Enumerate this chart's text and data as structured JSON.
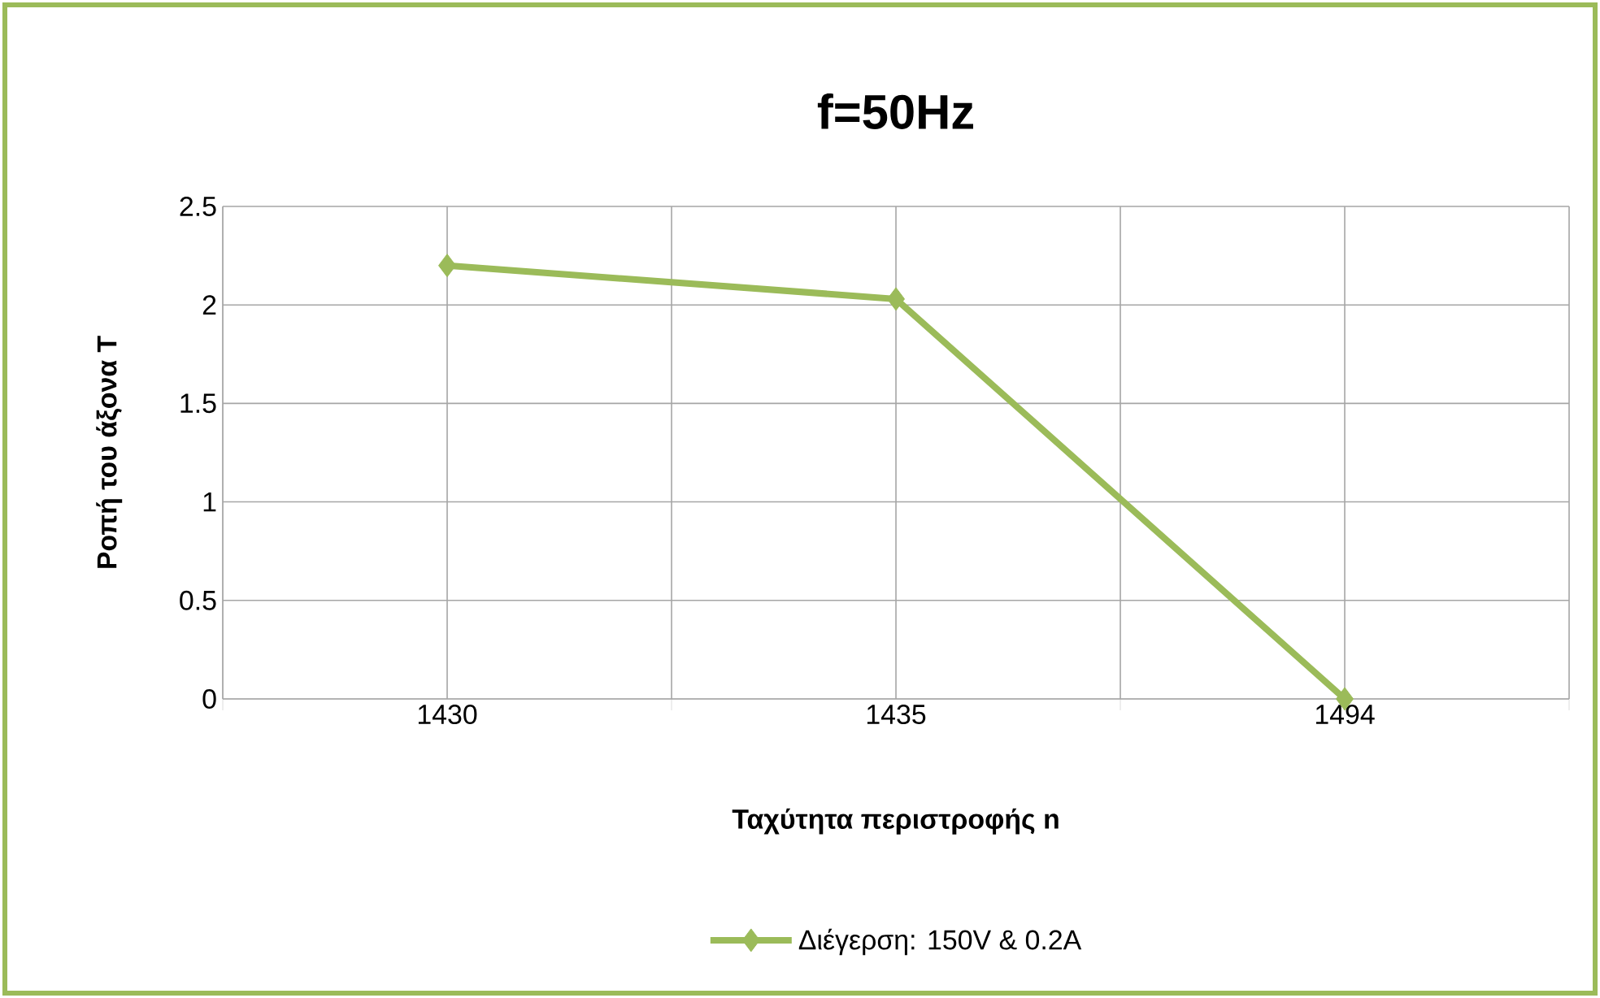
{
  "chart_data": {
    "type": "line",
    "title": "f=50Hz",
    "xlabel": "Ταχύτητα περιστροφής n",
    "ylabel": "Ροπή του άξονα T",
    "categories": [
      "1430",
      "1435",
      "1494"
    ],
    "series": [
      {
        "name": "Διέγερση: 150V & 0.2A",
        "color": "#9bbb59",
        "values": [
          2.2,
          2.03,
          0
        ]
      }
    ],
    "ylim": [
      0,
      2.5
    ],
    "yticks": [
      0,
      0.5,
      1,
      1.5,
      2,
      2.5
    ],
    "grid": true,
    "legend": "bottom",
    "marker": "diamond",
    "line_style": "solid"
  }
}
